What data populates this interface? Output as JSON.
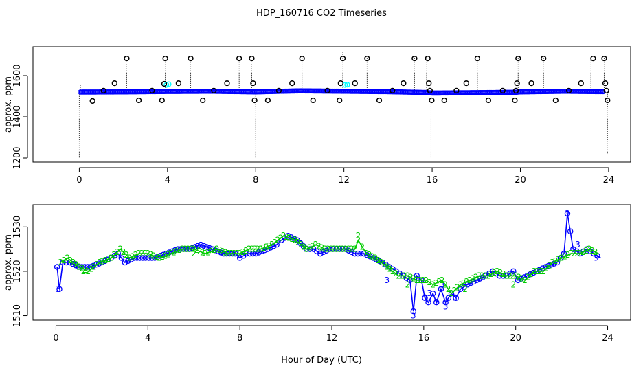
{
  "title": "HDP_160716  CO2 Timeseries",
  "xlabel": "Hour of Day (UTC)",
  "chart_data": [
    {
      "type": "scatter",
      "ylabel": "approx. ppm",
      "xlim": [
        -2.1,
        25
      ],
      "ylim": [
        1180,
        1740
      ],
      "xticks": [
        0,
        4,
        8,
        12,
        16,
        20,
        24
      ],
      "yticks": [
        1200,
        1400,
        1600
      ],
      "colors": {
        "points": "#0000ff",
        "aux": "#00ffff",
        "outliers": "#000000",
        "spikes": "#000000"
      },
      "baseline": [
        [
          0.05,
          1520
        ],
        [
          2,
          1521
        ],
        [
          4,
          1523
        ],
        [
          6,
          1524
        ],
        [
          8,
          1521
        ],
        [
          10,
          1526
        ],
        [
          12,
          1524
        ],
        [
          14,
          1522
        ],
        [
          15.7,
          1518
        ],
        [
          16,
          1515
        ],
        [
          18,
          1517
        ],
        [
          19.8,
          1519
        ],
        [
          20,
          1521
        ],
        [
          22,
          1524
        ],
        [
          23.8,
          1522
        ]
      ],
      "spikes": [
        [
          0,
          1200
        ],
        [
          0.05,
          1560
        ],
        [
          2.15,
          1660
        ],
        [
          3.9,
          1680
        ],
        [
          5.05,
          1680
        ],
        [
          7.25,
          1680
        ],
        [
          7.82,
          1660
        ],
        [
          8,
          1200
        ],
        [
          10.1,
          1700
        ],
        [
          11.95,
          1715
        ],
        [
          13.05,
          1690
        ],
        [
          15.2,
          1700
        ],
        [
          15.75,
          1700
        ],
        [
          15.95,
          1200
        ],
        [
          18.05,
          1680
        ],
        [
          19.9,
          1700
        ],
        [
          21.05,
          1690
        ],
        [
          23.2,
          1690
        ],
        [
          23.8,
          1700
        ],
        [
          23.95,
          1220
        ]
      ],
      "outliers": [
        [
          0.6,
          1477
        ],
        [
          1.1,
          1527
        ],
        [
          1.6,
          1563
        ],
        [
          2.15,
          1683
        ],
        [
          2.7,
          1480
        ],
        [
          3.3,
          1527
        ],
        [
          3.75,
          1480
        ],
        [
          3.85,
          1560
        ],
        [
          3.9,
          1683
        ],
        [
          4.5,
          1563
        ],
        [
          5.05,
          1683
        ],
        [
          5.6,
          1480
        ],
        [
          6.1,
          1527
        ],
        [
          6.7,
          1563
        ],
        [
          7.25,
          1683
        ],
        [
          7.82,
          1683
        ],
        [
          7.88,
          1563
        ],
        [
          7.95,
          1480
        ],
        [
          8.55,
          1480
        ],
        [
          9.05,
          1527
        ],
        [
          9.65,
          1563
        ],
        [
          10.1,
          1683
        ],
        [
          10.6,
          1480
        ],
        [
          11.25,
          1527
        ],
        [
          11.8,
          1480
        ],
        [
          11.85,
          1563
        ],
        [
          11.95,
          1683
        ],
        [
          12.5,
          1563
        ],
        [
          13.05,
          1683
        ],
        [
          13.6,
          1480
        ],
        [
          14.2,
          1527
        ],
        [
          14.7,
          1563
        ],
        [
          15.2,
          1683
        ],
        [
          15.8,
          1683
        ],
        [
          15.85,
          1563
        ],
        [
          15.9,
          1527
        ],
        [
          15.98,
          1480
        ],
        [
          16.55,
          1480
        ],
        [
          17.1,
          1527
        ],
        [
          17.55,
          1563
        ],
        [
          18.05,
          1683
        ],
        [
          18.55,
          1480
        ],
        [
          19.2,
          1527
        ],
        [
          19.75,
          1480
        ],
        [
          19.8,
          1527
        ],
        [
          19.85,
          1563
        ],
        [
          19.9,
          1683
        ],
        [
          20.5,
          1563
        ],
        [
          21.05,
          1683
        ],
        [
          21.6,
          1480
        ],
        [
          22.2,
          1527
        ],
        [
          22.75,
          1563
        ],
        [
          23.3,
          1683
        ],
        [
          23.8,
          1683
        ],
        [
          23.85,
          1563
        ],
        [
          23.9,
          1527
        ],
        [
          23.95,
          1480
        ]
      ],
      "aux_points": [
        [
          3.95,
          1555
        ],
        [
          4.05,
          1558
        ],
        [
          12.05,
          1555
        ],
        [
          12.15,
          1556
        ]
      ]
    },
    {
      "type": "line",
      "ylabel": "approx. ppm",
      "xlim": [
        -1.0,
        25
      ],
      "ylim": [
        1509,
        1535
      ],
      "xticks": [
        0,
        4,
        8,
        12,
        16,
        20,
        24
      ],
      "yticks": [
        1510,
        1520,
        1530
      ],
      "series": [
        {
          "name": "3",
          "color": "#0000ff",
          "marker": "3",
          "points": [
            [
              0.05,
              1521
            ],
            [
              0.15,
              1516
            ],
            [
              0.3,
              1522
            ],
            [
              0.6,
              1522
            ],
            [
              1,
              1521
            ],
            [
              1.5,
              1521
            ],
            [
              2,
              1522
            ],
            [
              2.4,
              1523
            ],
            [
              2.7,
              1524
            ],
            [
              3,
              1522
            ],
            [
              3.4,
              1523
            ],
            [
              3.9,
              1523
            ],
            [
              4.3,
              1523
            ],
            [
              4.8,
              1524
            ],
            [
              5.3,
              1525
            ],
            [
              5.8,
              1525
            ],
            [
              6.3,
              1526
            ],
            [
              6.8,
              1525
            ],
            [
              7.3,
              1524
            ],
            [
              7.8,
              1524
            ],
            [
              8,
              1523
            ],
            [
              8.3,
              1524
            ],
            [
              8.7,
              1524
            ],
            [
              9.2,
              1525
            ],
            [
              9.6,
              1526
            ],
            [
              9.8,
              1527
            ],
            [
              10.1,
              1528
            ],
            [
              10.5,
              1527
            ],
            [
              10.9,
              1525
            ],
            [
              11.2,
              1525
            ],
            [
              11.5,
              1524
            ],
            [
              11.9,
              1525
            ],
            [
              12.2,
              1525
            ],
            [
              12.6,
              1525
            ],
            [
              13,
              1524
            ],
            [
              13.4,
              1524
            ],
            [
              13.8,
              1523
            ],
            [
              14.2,
              1522
            ],
            [
              14.5,
              1521
            ],
            [
              14.8,
              1520
            ],
            [
              15.1,
              1519
            ],
            [
              15.4,
              1518
            ],
            [
              15.55,
              1511
            ],
            [
              15.7,
              1519
            ],
            [
              15.9,
              1518
            ],
            [
              16.05,
              1514
            ],
            [
              16.2,
              1513
            ],
            [
              16.4,
              1515
            ],
            [
              16.55,
              1513
            ],
            [
              16.75,
              1516
            ],
            [
              16.95,
              1513
            ],
            [
              17.2,
              1515
            ],
            [
              17.4,
              1514
            ],
            [
              17.6,
              1516
            ],
            [
              17.9,
              1517
            ],
            [
              18.3,
              1518
            ],
            [
              18.7,
              1519
            ],
            [
              19,
              1520
            ],
            [
              19.3,
              1519
            ],
            [
              19.6,
              1519
            ],
            [
              19.9,
              1520
            ],
            [
              20.1,
              1518
            ],
            [
              20.5,
              1519
            ],
            [
              20.9,
              1520
            ],
            [
              21.3,
              1521
            ],
            [
              21.8,
              1522
            ],
            [
              22.1,
              1524
            ],
            [
              22.25,
              1533
            ],
            [
              22.5,
              1525
            ],
            [
              22.8,
              1524
            ],
            [
              23.1,
              1525
            ],
            [
              23.4,
              1524
            ],
            [
              23.7,
              1523
            ]
          ],
          "labeled": [
            [
              0.1,
              1516
            ],
            [
              15.55,
              1510
            ],
            [
              16.05,
              1514
            ],
            [
              16.55,
              1513
            ],
            [
              16.95,
              1512
            ],
            [
              22.25,
              1533
            ],
            [
              14.4,
              1518
            ],
            [
              16.25,
              1515
            ],
            [
              16.8,
              1517
            ],
            [
              17.35,
              1514
            ],
            [
              22.7,
              1526
            ],
            [
              23.5,
              1523
            ]
          ]
        },
        {
          "name": "2",
          "color": "#00cc00",
          "marker": "2",
          "points": [
            [
              0.2,
              1522
            ],
            [
              0.5,
              1523
            ],
            [
              1,
              1521
            ],
            [
              1.4,
              1520
            ],
            [
              1.9,
              1522
            ],
            [
              2.4,
              1523
            ],
            [
              2.8,
              1525
            ],
            [
              3.2,
              1523
            ],
            [
              3.6,
              1524
            ],
            [
              4,
              1524
            ],
            [
              4.5,
              1523
            ],
            [
              5,
              1524
            ],
            [
              5.5,
              1525
            ],
            [
              6,
              1525
            ],
            [
              6.5,
              1524
            ],
            [
              7,
              1525
            ],
            [
              7.5,
              1524
            ],
            [
              8,
              1524
            ],
            [
              8.4,
              1525
            ],
            [
              8.9,
              1525
            ],
            [
              9.4,
              1526
            ],
            [
              9.9,
              1528
            ],
            [
              10.4,
              1527
            ],
            [
              10.9,
              1525
            ],
            [
              11.3,
              1526
            ],
            [
              11.7,
              1525
            ],
            [
              12.1,
              1525
            ],
            [
              12.6,
              1525
            ],
            [
              13,
              1525
            ],
            [
              13.15,
              1527
            ],
            [
              13.5,
              1524
            ],
            [
              13.9,
              1523
            ],
            [
              14.4,
              1521
            ],
            [
              14.9,
              1519
            ],
            [
              15.3,
              1519
            ],
            [
              15.7,
              1518
            ],
            [
              16.1,
              1518
            ],
            [
              16.4,
              1517
            ],
            [
              16.8,
              1518
            ],
            [
              17.2,
              1515
            ],
            [
              17.6,
              1517
            ],
            [
              18,
              1518
            ],
            [
              18.4,
              1519
            ],
            [
              18.8,
              1519
            ],
            [
              19.2,
              1520
            ],
            [
              19.6,
              1519
            ],
            [
              20,
              1519
            ],
            [
              20.4,
              1518
            ],
            [
              20.8,
              1520
            ],
            [
              21.2,
              1520
            ],
            [
              21.6,
              1522
            ],
            [
              22,
              1523
            ],
            [
              22.4,
              1524
            ],
            [
              22.8,
              1524
            ],
            [
              23.2,
              1525
            ],
            [
              23.6,
              1524
            ]
          ],
          "labeled": [
            [
              13.15,
              1528
            ],
            [
              1.2,
              1520
            ],
            [
              6.0,
              1524
            ],
            [
              15.3,
              1517
            ],
            [
              17.8,
              1516
            ],
            [
              19.9,
              1517
            ]
          ]
        }
      ]
    }
  ]
}
